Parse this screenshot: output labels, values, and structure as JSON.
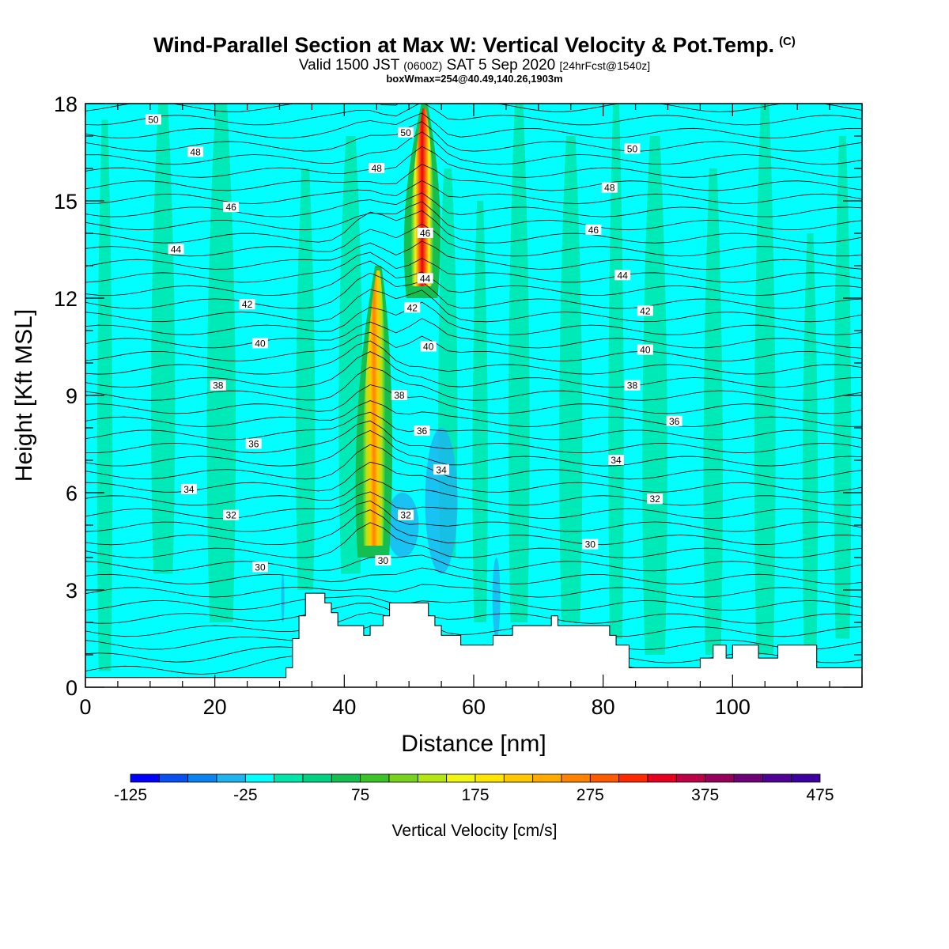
{
  "header": {
    "title": "Wind-Parallel Section at Max W: Vertical Velocity & Pot.Temp.",
    "copyright": "(C)",
    "valid_prefix": "Valid 1500 JST",
    "valid_utc": "(0600Z)",
    "valid_date": "SAT 5 Sep 2020",
    "forecast": "[24hrFcst@1540z]",
    "box_info": "boxWmax=254@40.49,140.26,1903m"
  },
  "chart_data": {
    "type": "heatmap",
    "xlabel": "Distance [nm]",
    "ylabel": "Height [Kft MSL]",
    "xlim": [
      0,
      120
    ],
    "ylim": [
      0,
      18
    ],
    "x_ticks": [
      0,
      20,
      40,
      60,
      80,
      100
    ],
    "y_ticks": [
      0,
      3,
      6,
      9,
      12,
      15,
      18
    ],
    "colorbar": {
      "title": "Vertical Velocity [cm/s]",
      "min": -125,
      "max": 475,
      "step": 25,
      "tick_labels": [
        -125,
        -25,
        75,
        175,
        275,
        375,
        475
      ],
      "colors": [
        "#0000ff",
        "#0a4ff0",
        "#0a82f0",
        "#1eb4f0",
        "#00ffff",
        "#00e6aa",
        "#00d282",
        "#14be50",
        "#3cc328",
        "#78d21e",
        "#b4e614",
        "#f0f514",
        "#ffe600",
        "#ffc800",
        "#ffaa00",
        "#ff8200",
        "#ff5a00",
        "#ff2800",
        "#e6001e",
        "#be0046",
        "#96005a",
        "#6e0078",
        "#500096",
        "#3c00a0"
      ]
    },
    "updraft_cores": [
      {
        "x_center": 44.5,
        "z_bottom": 4.0,
        "z_top": 13.0,
        "peak_w": 254
      },
      {
        "x_center": 52.0,
        "z_bottom": 12.0,
        "z_top": 18.0,
        "peak_w": 400
      }
    ],
    "terrain_kft": {
      "x": [
        0,
        30,
        31,
        32,
        33,
        34,
        36,
        37,
        38,
        39,
        42,
        43,
        44,
        46,
        47,
        48,
        51,
        53,
        54,
        55,
        57,
        58,
        62,
        63,
        65,
        66,
        70,
        72,
        73,
        78,
        80,
        81,
        82,
        84,
        94,
        95,
        96,
        97,
        98,
        99,
        100,
        103,
        104,
        106,
        107,
        112,
        113,
        120
      ],
      "z": [
        0.3,
        0.3,
        0.6,
        1.5,
        2.2,
        2.9,
        2.9,
        2.6,
        2.3,
        1.9,
        1.9,
        1.6,
        1.9,
        2.2,
        2.6,
        2.6,
        2.6,
        2.2,
        1.9,
        1.6,
        1.6,
        1.3,
        1.3,
        1.6,
        1.6,
        1.9,
        1.9,
        2.2,
        1.9,
        1.9,
        1.9,
        1.6,
        1.3,
        0.6,
        0.6,
        0.9,
        0.9,
        1.3,
        1.3,
        0.9,
        1.3,
        1.3,
        0.9,
        0.9,
        1.3,
        1.3,
        0.6,
        0.6
      ]
    },
    "theta_contours": {
      "levels": [
        30,
        32,
        34,
        36,
        38,
        40,
        42,
        44,
        46,
        48,
        50
      ],
      "labels": [
        {
          "text": "50",
          "x": 10.5,
          "z": 17.5
        },
        {
          "text": "48",
          "x": 17.0,
          "z": 16.5
        },
        {
          "text": "46",
          "x": 22.5,
          "z": 14.8
        },
        {
          "text": "44",
          "x": 14.0,
          "z": 13.5
        },
        {
          "text": "42",
          "x": 25.0,
          "z": 11.8
        },
        {
          "text": "40",
          "x": 27.0,
          "z": 10.6
        },
        {
          "text": "38",
          "x": 20.5,
          "z": 9.3
        },
        {
          "text": "36",
          "x": 26.0,
          "z": 7.5
        },
        {
          "text": "34",
          "x": 16.0,
          "z": 6.1
        },
        {
          "text": "32",
          "x": 22.5,
          "z": 5.3
        },
        {
          "text": "30",
          "x": 27.0,
          "z": 3.7
        },
        {
          "text": "50",
          "x": 49.5,
          "z": 17.1
        },
        {
          "text": "48",
          "x": 45.0,
          "z": 16.0
        },
        {
          "text": "46",
          "x": 52.5,
          "z": 14.0
        },
        {
          "text": "44",
          "x": 52.5,
          "z": 12.6
        },
        {
          "text": "42",
          "x": 50.5,
          "z": 11.7
        },
        {
          "text": "40",
          "x": 53.0,
          "z": 10.5
        },
        {
          "text": "38",
          "x": 48.5,
          "z": 9.0
        },
        {
          "text": "36",
          "x": 52.0,
          "z": 7.9
        },
        {
          "text": "34",
          "x": 55.0,
          "z": 6.7
        },
        {
          "text": "32",
          "x": 49.5,
          "z": 5.3
        },
        {
          "text": "30",
          "x": 46.0,
          "z": 3.9
        },
        {
          "text": "50",
          "x": 84.5,
          "z": 16.6
        },
        {
          "text": "48",
          "x": 81.0,
          "z": 15.4
        },
        {
          "text": "46",
          "x": 78.5,
          "z": 14.1
        },
        {
          "text": "44",
          "x": 83.0,
          "z": 12.7
        },
        {
          "text": "42",
          "x": 86.5,
          "z": 11.6
        },
        {
          "text": "40",
          "x": 86.5,
          "z": 10.4
        },
        {
          "text": "38",
          "x": 84.5,
          "z": 9.3
        },
        {
          "text": "36",
          "x": 91.0,
          "z": 8.2
        },
        {
          "text": "34",
          "x": 82.0,
          "z": 7.0
        },
        {
          "text": "32",
          "x": 88.0,
          "z": 5.8
        },
        {
          "text": "30",
          "x": 78.0,
          "z": 4.4
        }
      ]
    }
  }
}
